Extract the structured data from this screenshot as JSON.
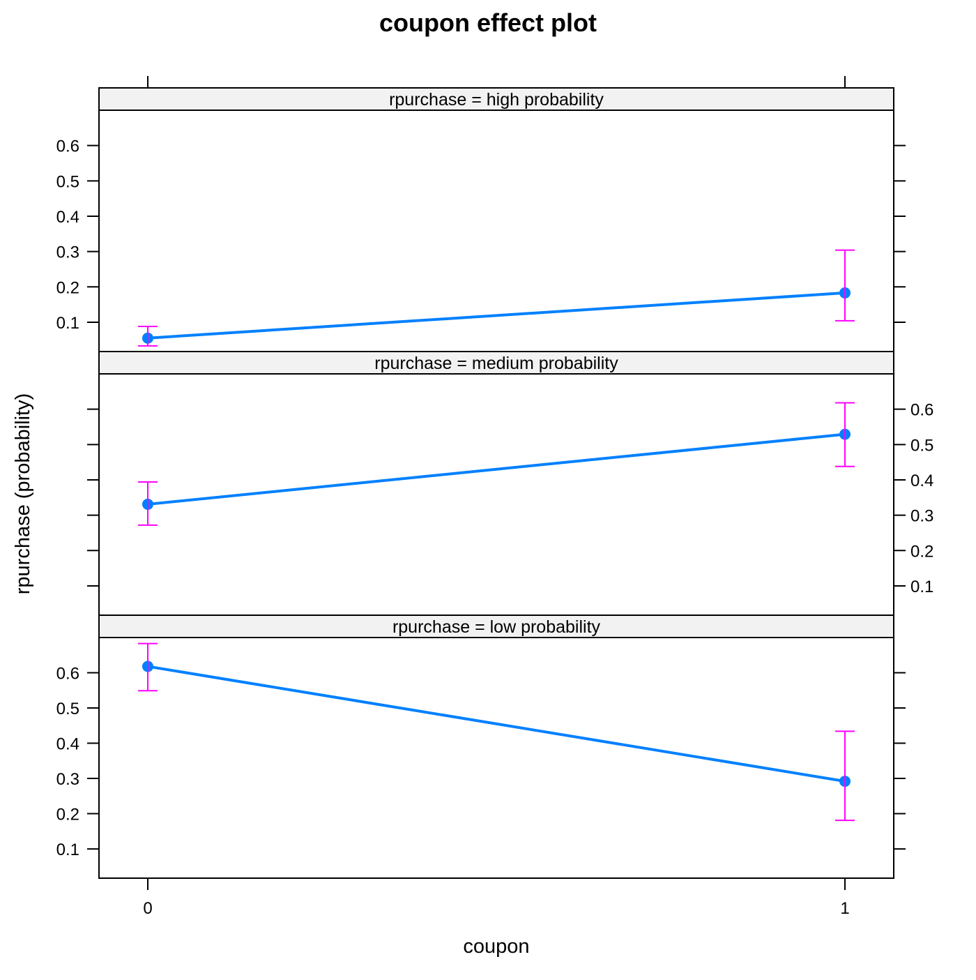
{
  "chart_data": {
    "type": "line",
    "title": "coupon effect plot",
    "xlabel": "coupon",
    "ylabel": "rpurchase (probability)",
    "x": [
      0,
      1
    ],
    "x_tick_labels": [
      "0",
      "1"
    ],
    "xlim": [
      -0.07,
      1.07
    ],
    "ylim": [
      0.017,
      0.7
    ],
    "y_ticks": [
      0.1,
      0.2,
      0.3,
      0.4,
      0.5,
      0.6
    ],
    "y_tick_labels": [
      "0.1",
      "0.2",
      "0.3",
      "0.4",
      "0.5",
      "0.6"
    ],
    "grid": false,
    "line_color": "#0080ff",
    "errorbar_color": "#ff00ff",
    "panels": [
      {
        "strip": "rpurchase = high probability",
        "values": [
          0.055,
          0.183
        ],
        "lower": [
          0.033,
          0.104
        ],
        "upper": [
          0.088,
          0.304
        ]
      },
      {
        "strip": "rpurchase = medium probability",
        "values": [
          0.331,
          0.529
        ],
        "lower": [
          0.272,
          0.438
        ],
        "upper": [
          0.394,
          0.618
        ]
      },
      {
        "strip": "rpurchase = low probability",
        "values": [
          0.618,
          0.292
        ],
        "lower": [
          0.549,
          0.181
        ],
        "upper": [
          0.683,
          0.434
        ]
      }
    ]
  }
}
